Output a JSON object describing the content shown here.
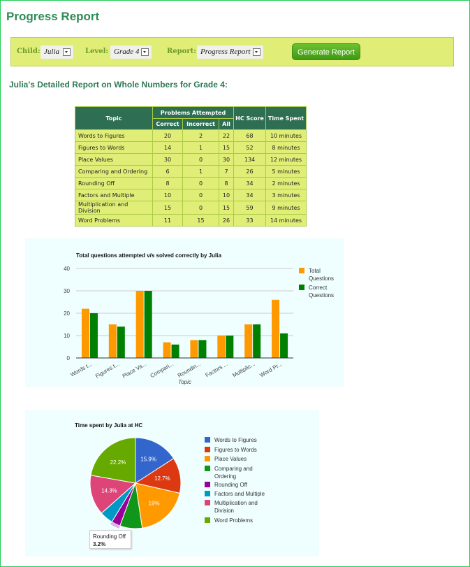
{
  "page": {
    "title": "Progress Report"
  },
  "controls": {
    "child_label": "Child:",
    "child_value": "Julia",
    "level_label": "Level:",
    "level_value": "Grade 4",
    "report_label": "Report:",
    "report_value": "Progress Report",
    "generate_button": "Generate Report"
  },
  "report": {
    "subtitle": "Julia's Detailed Report on Whole Numbers for Grade 4:",
    "headers": {
      "topic": "Topic",
      "problems_attempted": "Problems Attempted",
      "correct": "Correct",
      "incorrect": "Incorrect",
      "all": "All",
      "hc_score": "HC Score",
      "time_spent": "Time Spent"
    },
    "rows": [
      {
        "topic": "Words to Figures",
        "correct": "20",
        "incorrect": "2",
        "all": "22",
        "hc_score": "68",
        "time": "10 minutes"
      },
      {
        "topic": "Figures to Words",
        "correct": "14",
        "incorrect": "1",
        "all": "15",
        "hc_score": "52",
        "time": "8 minutes"
      },
      {
        "topic": "Place Values",
        "correct": "30",
        "incorrect": "0",
        "all": "30",
        "hc_score": "134",
        "time": "12 minutes"
      },
      {
        "topic": "Comparing and Ordering",
        "correct": "6",
        "incorrect": "1",
        "all": "7",
        "hc_score": "26",
        "time": "5 minutes"
      },
      {
        "topic": "Rounding Off",
        "correct": "8",
        "incorrect": "0",
        "all": "8",
        "hc_score": "34",
        "time": "2 minutes"
      },
      {
        "topic": "Factors and Multiple",
        "correct": "10",
        "incorrect": "0",
        "all": "10",
        "hc_score": "34",
        "time": "3 minutes"
      },
      {
        "topic": "Multiplication and Division",
        "correct": "15",
        "incorrect": "0",
        "all": "15",
        "hc_score": "59",
        "time": "9 minutes"
      },
      {
        "topic": "Word Problems",
        "correct": "11",
        "incorrect": "15",
        "all": "26",
        "hc_score": "33",
        "time": "14 minutes"
      }
    ]
  },
  "colors": {
    "total": "#ff9900",
    "correct": "#008000",
    "table_header": "#2e6e52",
    "table_cell": "#e0ee77",
    "panel_bg": "#effefe"
  },
  "chart_data": [
    {
      "type": "bar",
      "title": "Total questions attempted v/s solved correctly by Julia",
      "xlabel": "Topic",
      "ylabel": "",
      "ylim": [
        0,
        40
      ],
      "yticks": [
        0,
        10,
        20,
        30,
        40
      ],
      "grid": true,
      "legend_position": "right",
      "categories": [
        "Words t...",
        "Figures t...",
        "Place Va...",
        "Compari...",
        "Roundin...",
        "Factors ...",
        "Multiplic...",
        "Word Pr..."
      ],
      "series": [
        {
          "name": "Total Questions",
          "color": "#ff9900",
          "values": [
            22,
            15,
            30,
            7,
            8,
            10,
            15,
            26
          ]
        },
        {
          "name": "Correct Questions",
          "color": "#008000",
          "values": [
            20,
            14,
            30,
            6,
            8,
            10,
            15,
            11
          ]
        }
      ]
    },
    {
      "type": "pie",
      "title": "Time spent by Julia at HC",
      "legend_position": "right",
      "labels": [
        "Words to Figures",
        "Figures to Words",
        "Place Values",
        "Comparing and Ordering",
        "Rounding Off",
        "Factors and Multiple",
        "Multiplication and Division",
        "Word Problems"
      ],
      "values": [
        10,
        8,
        12,
        5,
        2,
        3,
        9,
        14
      ],
      "percentages": [
        "15.9%",
        "12.7%",
        "19%",
        "7.9%",
        "3.2%",
        "4.8%",
        "14.3%",
        "22.2%"
      ],
      "colors": [
        "#3366cc",
        "#dc3912",
        "#ff9900",
        "#109618",
        "#990099",
        "#0099c6",
        "#dd4477",
        "#66aa00"
      ],
      "tooltip": {
        "label": "Rounding Off",
        "value": "3.2%"
      }
    }
  ]
}
